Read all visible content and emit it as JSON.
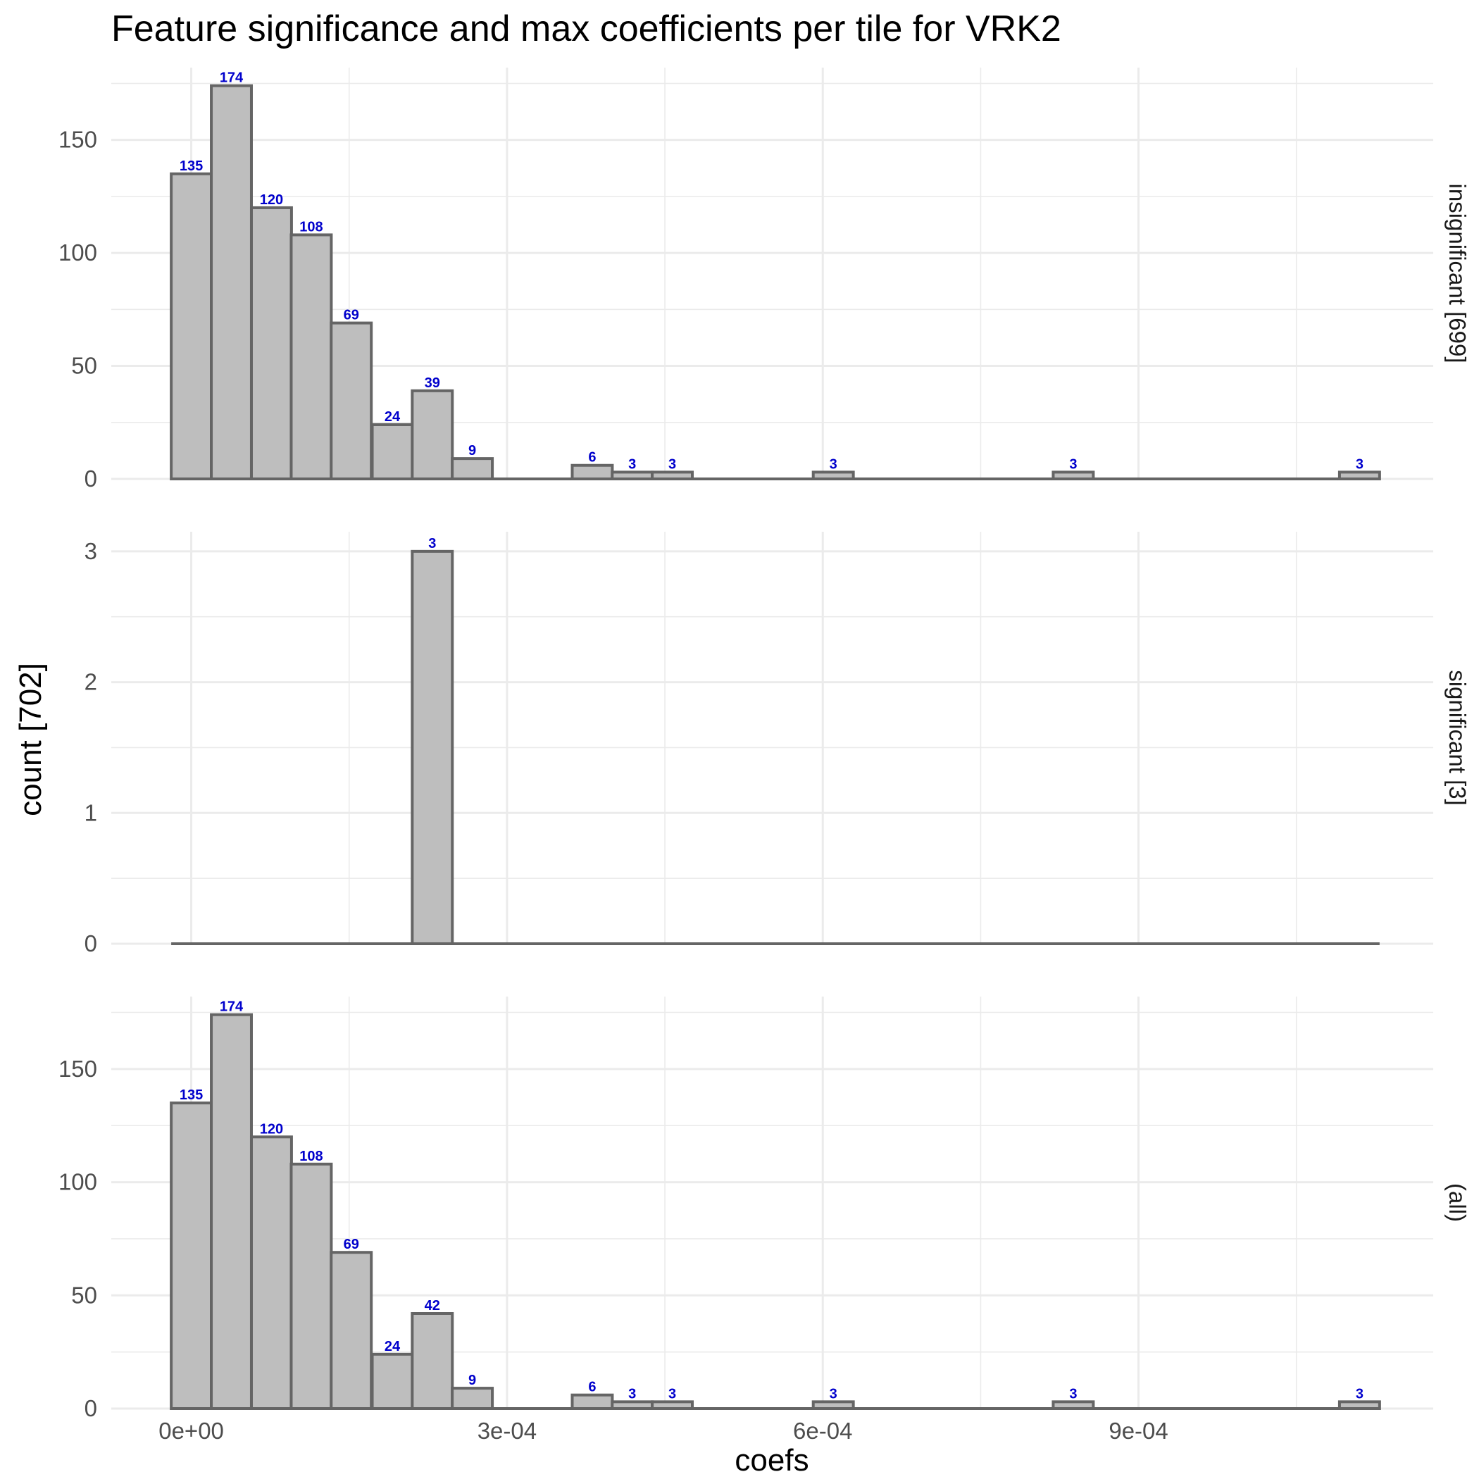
{
  "chart_data": {
    "type": "bar",
    "title": "Feature significance and max coefficients per tile for VRK2",
    "xlabel": "coefs",
    "ylabel": "count [702]",
    "bin_width": 3.81e-05,
    "x_ticks": [
      {
        "value": 0,
        "label": "0e+00"
      },
      {
        "value": 0.0003,
        "label": "3e-04"
      },
      {
        "value": 0.0006,
        "label": "6e-04"
      },
      {
        "value": 0.0009,
        "label": "9e-04"
      }
    ],
    "xlim": [
      -7.6e-05,
      0.00118
    ],
    "panels": [
      {
        "name": "insignificant [699]",
        "ylim": [
          0,
          182
        ],
        "y_ticks": [
          0,
          50,
          100,
          150
        ],
        "bins": [
          {
            "x": 0.0,
            "count": 135
          },
          {
            "x": 3.81e-05,
            "count": 174
          },
          {
            "x": 7.62e-05,
            "count": 120
          },
          {
            "x": 0.000114,
            "count": 108
          },
          {
            "x": 0.000152,
            "count": 69
          },
          {
            "x": 0.000191,
            "count": 24
          },
          {
            "x": 0.000229,
            "count": 39
          },
          {
            "x": 0.000267,
            "count": 9
          },
          {
            "x": 0.000305,
            "count": 0
          },
          {
            "x": 0.000343,
            "count": 0
          },
          {
            "x": 0.000381,
            "count": 6
          },
          {
            "x": 0.000419,
            "count": 3
          },
          {
            "x": 0.000457,
            "count": 3
          },
          {
            "x": 0.000495,
            "count": 0
          },
          {
            "x": 0.000534,
            "count": 0
          },
          {
            "x": 0.000572,
            "count": 0
          },
          {
            "x": 0.00061,
            "count": 3
          },
          {
            "x": 0.000648,
            "count": 0
          },
          {
            "x": 0.000686,
            "count": 0
          },
          {
            "x": 0.000724,
            "count": 0
          },
          {
            "x": 0.000762,
            "count": 0
          },
          {
            "x": 0.0008,
            "count": 0
          },
          {
            "x": 0.000838,
            "count": 3
          },
          {
            "x": 0.000877,
            "count": 0
          },
          {
            "x": 0.000915,
            "count": 0
          },
          {
            "x": 0.000953,
            "count": 0
          },
          {
            "x": 0.000991,
            "count": 0
          },
          {
            "x": 0.00103,
            "count": 0
          },
          {
            "x": 0.00107,
            "count": 0
          },
          {
            "x": 0.00111,
            "count": 3
          }
        ],
        "labels": [
          "135",
          "174",
          "120",
          "108",
          "69",
          "24",
          "39",
          "9",
          "6",
          "3",
          "3",
          "3",
          "3",
          "3"
        ]
      },
      {
        "name": "significant [3]",
        "ylim": [
          0,
          3.15
        ],
        "y_ticks": [
          0,
          1,
          2,
          3
        ],
        "bins": [
          {
            "x": 0.0,
            "count": 0
          },
          {
            "x": 3.81e-05,
            "count": 0
          },
          {
            "x": 7.62e-05,
            "count": 0
          },
          {
            "x": 0.000114,
            "count": 0
          },
          {
            "x": 0.000152,
            "count": 0
          },
          {
            "x": 0.000191,
            "count": 0
          },
          {
            "x": 0.000229,
            "count": 3
          },
          {
            "x": 0.000267,
            "count": 0
          },
          {
            "x": 0.000305,
            "count": 0
          },
          {
            "x": 0.000343,
            "count": 0
          },
          {
            "x": 0.000381,
            "count": 0
          },
          {
            "x": 0.000419,
            "count": 0
          },
          {
            "x": 0.000457,
            "count": 0
          },
          {
            "x": 0.000495,
            "count": 0
          },
          {
            "x": 0.000534,
            "count": 0
          },
          {
            "x": 0.000572,
            "count": 0
          },
          {
            "x": 0.00061,
            "count": 0
          },
          {
            "x": 0.000648,
            "count": 0
          },
          {
            "x": 0.000686,
            "count": 0
          },
          {
            "x": 0.000724,
            "count": 0
          },
          {
            "x": 0.000762,
            "count": 0
          },
          {
            "x": 0.0008,
            "count": 0
          },
          {
            "x": 0.000838,
            "count": 0
          },
          {
            "x": 0.000877,
            "count": 0
          },
          {
            "x": 0.000915,
            "count": 0
          },
          {
            "x": 0.000953,
            "count": 0
          },
          {
            "x": 0.000991,
            "count": 0
          },
          {
            "x": 0.00103,
            "count": 0
          },
          {
            "x": 0.00107,
            "count": 0
          },
          {
            "x": 0.00111,
            "count": 0
          }
        ],
        "labels": [
          "3"
        ]
      },
      {
        "name": "(all)",
        "ylim": [
          0,
          182
        ],
        "y_ticks": [
          0,
          50,
          100,
          150
        ],
        "bins": [
          {
            "x": 0.0,
            "count": 135
          },
          {
            "x": 3.81e-05,
            "count": 174
          },
          {
            "x": 7.62e-05,
            "count": 120
          },
          {
            "x": 0.000114,
            "count": 108
          },
          {
            "x": 0.000152,
            "count": 69
          },
          {
            "x": 0.000191,
            "count": 24
          },
          {
            "x": 0.000229,
            "count": 42
          },
          {
            "x": 0.000267,
            "count": 9
          },
          {
            "x": 0.000305,
            "count": 0
          },
          {
            "x": 0.000343,
            "count": 0
          },
          {
            "x": 0.000381,
            "count": 6
          },
          {
            "x": 0.000419,
            "count": 3
          },
          {
            "x": 0.000457,
            "count": 3
          },
          {
            "x": 0.000495,
            "count": 0
          },
          {
            "x": 0.000534,
            "count": 0
          },
          {
            "x": 0.000572,
            "count": 0
          },
          {
            "x": 0.00061,
            "count": 3
          },
          {
            "x": 0.000648,
            "count": 0
          },
          {
            "x": 0.000686,
            "count": 0
          },
          {
            "x": 0.000724,
            "count": 0
          },
          {
            "x": 0.000762,
            "count": 0
          },
          {
            "x": 0.0008,
            "count": 0
          },
          {
            "x": 0.000838,
            "count": 3
          },
          {
            "x": 0.000877,
            "count": 0
          },
          {
            "x": 0.000915,
            "count": 0
          },
          {
            "x": 0.000953,
            "count": 0
          },
          {
            "x": 0.000991,
            "count": 0
          },
          {
            "x": 0.00103,
            "count": 0
          },
          {
            "x": 0.00107,
            "count": 0
          },
          {
            "x": 0.00111,
            "count": 3
          }
        ],
        "labels": [
          "135",
          "174",
          "120",
          "108",
          "69",
          "24",
          "42",
          "9",
          "6",
          "3",
          "3",
          "3",
          "3",
          "3"
        ]
      }
    ],
    "grid": true,
    "legend": "none",
    "colors": {
      "bar_fill": "#bebebe",
      "bar_outline": "#656565",
      "count_label": "#0000cc"
    }
  }
}
